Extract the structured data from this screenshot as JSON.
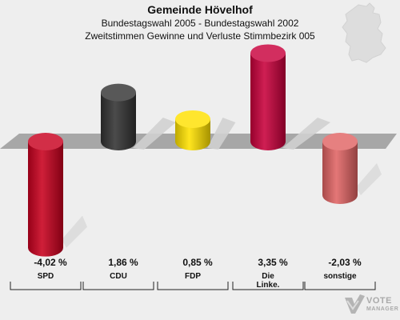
{
  "header": {
    "title": "Gemeinde Hövelhof",
    "subtitle_1": "Bundestagswahl 2005 - Bundestagswahl 2002",
    "subtitle_2": "Zweitstimmen Gewinne und Verluste Stimmbezirk 005"
  },
  "logo": {
    "line1": "VOTE",
    "line2": "MANAGER"
  },
  "chart_data": {
    "type": "bar",
    "title": "Gemeinde Hövelhof",
    "categories": [
      "SPD",
      "CDU",
      "FDP",
      "Die Linke.",
      "sonstige"
    ],
    "values": [
      -4.02,
      1.86,
      0.85,
      3.35,
      -2.03
    ],
    "value_labels": [
      "-4,02 %",
      "1,86 %",
      "0,85 %",
      "3,35 %",
      "-2,03 %"
    ],
    "category_labels": [
      [
        "SPD"
      ],
      [
        "CDU"
      ],
      [
        "FDP"
      ],
      [
        "Die",
        "Linke."
      ],
      [
        "sonstige"
      ]
    ],
    "colors": [
      "#c8001e",
      "#333333",
      "#ffe100",
      "#c8003c",
      "#e06464"
    ],
    "ylim": [
      -4.5,
      4.5
    ],
    "grid": false,
    "legend": "none"
  }
}
